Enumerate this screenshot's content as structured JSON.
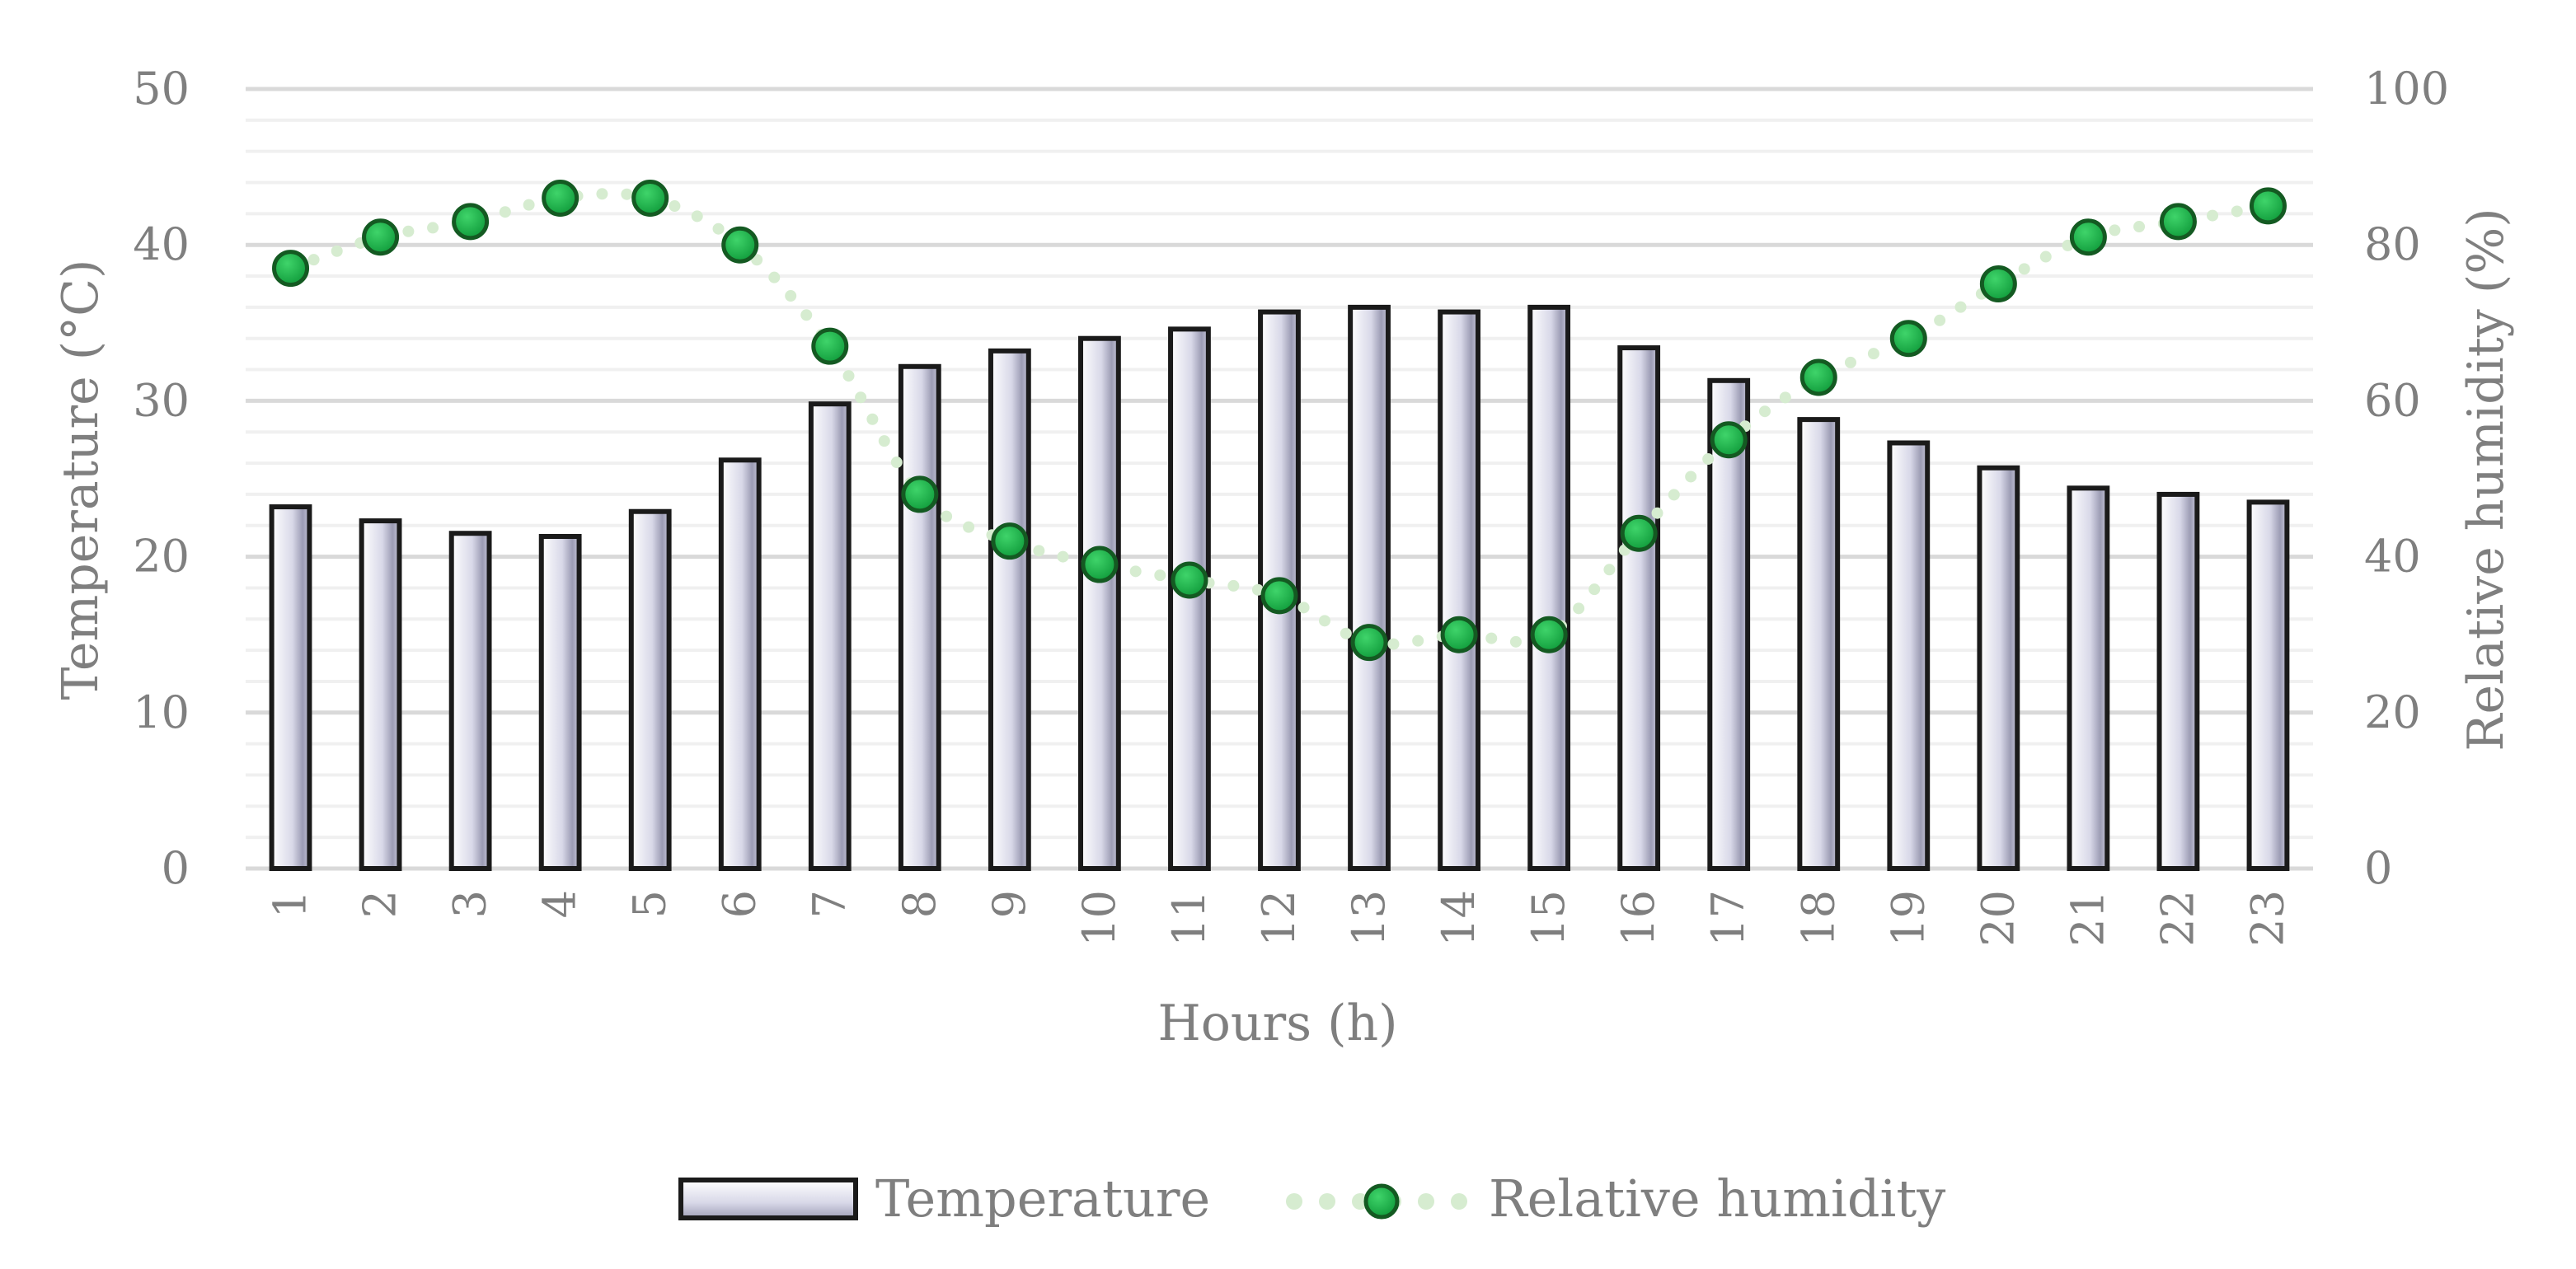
{
  "chart_data": {
    "type": "bar",
    "categories": [
      "1",
      "2",
      "3",
      "4",
      "5",
      "6",
      "7",
      "8",
      "9",
      "10",
      "11",
      "12",
      "13",
      "14",
      "15",
      "16",
      "17",
      "18",
      "19",
      "20",
      "21",
      "22",
      "23"
    ],
    "series": [
      {
        "name": "Temperature",
        "type": "bar",
        "axis": "left",
        "values": [
          23.2,
          22.3,
          21.5,
          21.3,
          22.9,
          26.2,
          29.8,
          32.2,
          33.2,
          34.0,
          34.6,
          35.7,
          36.0,
          35.7,
          36.0,
          33.4,
          31.3,
          28.8,
          27.3,
          25.7,
          24.4,
          24.0,
          23.5
        ]
      },
      {
        "name": "Relative humidity",
        "type": "line",
        "axis": "right",
        "values": [
          77,
          81,
          83,
          86,
          86,
          80,
          67,
          48,
          42,
          39,
          37,
          35,
          29,
          30,
          30,
          43,
          55,
          63,
          68,
          75,
          81,
          83,
          85
        ]
      }
    ],
    "title": "",
    "xlabel": "Hours (h)",
    "ylabel": "Temperature (°C)",
    "y2label": "Relative humidity (%)",
    "ylim": [
      0,
      50
    ],
    "y2lim": [
      0,
      100
    ],
    "yticks": [
      "0",
      "10",
      "20",
      "30",
      "40",
      "50"
    ],
    "y2ticks": [
      "0",
      "20",
      "40",
      "60",
      "80",
      "100"
    ],
    "grid": true,
    "legend": {
      "position": "bottom-center",
      "entries": [
        "Temperature",
        "Relative humidity"
      ]
    },
    "colors": {
      "bar_fill": "#d4d4e6",
      "bar_border": "#1a1a1a",
      "marker_fill": "#1db54a",
      "marker_edge": "#145a22",
      "line_dots": "#d6ecd0",
      "grid_major": "#d9d9d9",
      "grid_minor": "#f0f0f0",
      "text": "#7f7f7f"
    }
  }
}
